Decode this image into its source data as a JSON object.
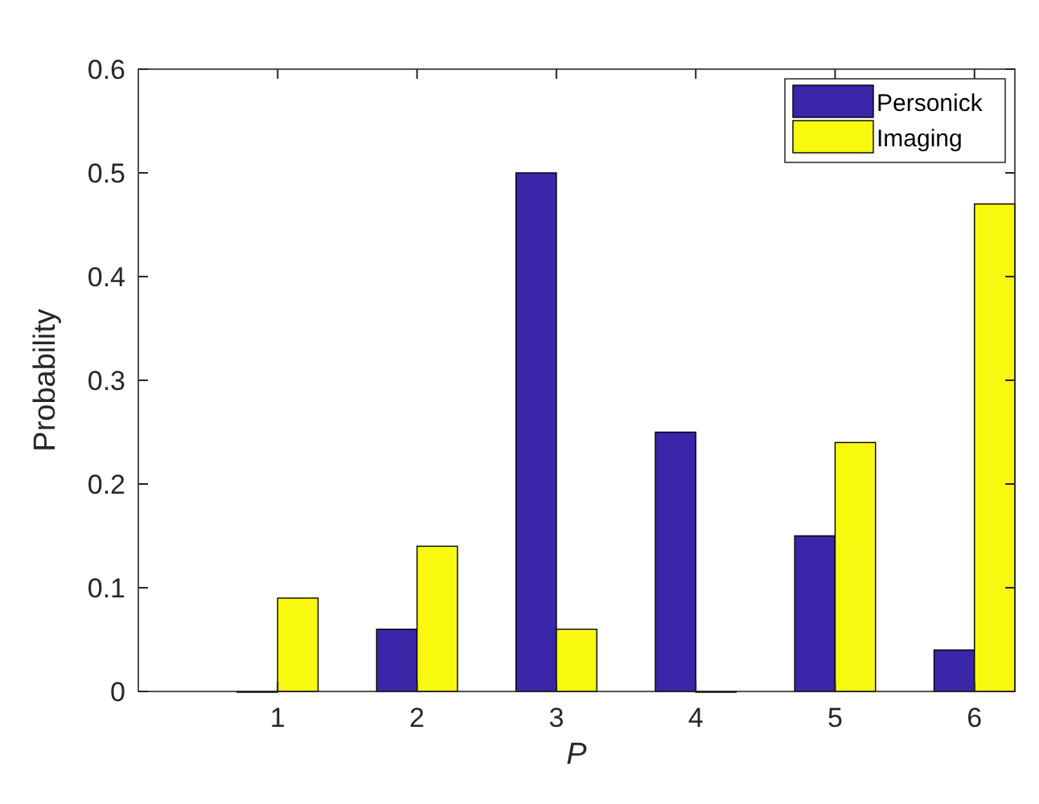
{
  "chart_data": {
    "type": "bar",
    "xlabel": "P",
    "ylabel": "Probability",
    "x": [
      1,
      2,
      3,
      4,
      5,
      6
    ],
    "series": [
      {
        "name": "Personick",
        "color": "#3a26a8",
        "values": [
          0,
          0.06,
          0.5,
          0.25,
          0.15,
          0.04
        ]
      },
      {
        "name": "Imaging",
        "color": "#f9f90f",
        "values": [
          0.09,
          0.14,
          0.06,
          0,
          0.24,
          0.47
        ]
      }
    ],
    "xlim": [
      0,
      6.29
    ],
    "xticks": [
      1,
      2,
      3,
      4,
      5,
      6
    ],
    "ylim": [
      0,
      0.6
    ],
    "yticks": [
      0,
      0.1,
      0.2,
      0.3,
      0.4,
      0.5,
      0.6
    ],
    "legend": "top right",
    "grid": false
  }
}
